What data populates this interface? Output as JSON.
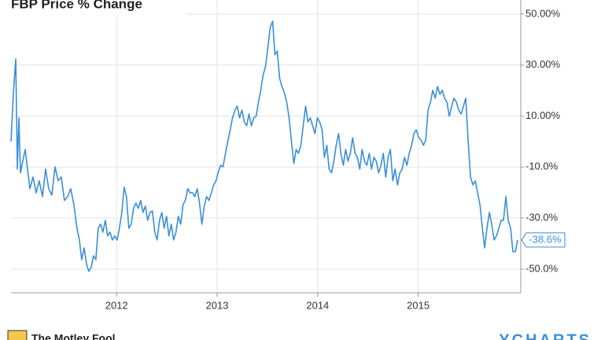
{
  "chart_data": {
    "type": "line",
    "title": "FBP Price % Change",
    "x": [
      2010.95,
      2010.973,
      2010.997,
      2011.013,
      2011.028,
      2011.044,
      2011.067,
      2011.091,
      2011.114,
      2011.138,
      2011.169,
      2011.2,
      2011.231,
      2011.263,
      2011.294,
      2011.325,
      2011.356,
      2011.388,
      2011.419,
      2011.45,
      2011.481,
      2011.513,
      2011.544,
      2011.575,
      2011.606,
      2011.63,
      2011.653,
      2011.677,
      2011.7,
      2011.723,
      2011.747,
      2011.77,
      2011.794,
      2011.817,
      2011.841,
      2011.864,
      2011.888,
      2011.911,
      2011.934,
      2011.958,
      2011.981,
      2012.005,
      2012.028,
      2012.052,
      2012.075,
      2012.098,
      2012.122,
      2012.145,
      2012.169,
      2012.192,
      2012.216,
      2012.239,
      2012.263,
      2012.286,
      2012.309,
      2012.333,
      2012.356,
      2012.38,
      2012.403,
      2012.427,
      2012.45,
      2012.473,
      2012.497,
      2012.52,
      2012.544,
      2012.567,
      2012.591,
      2012.614,
      2012.638,
      2012.661,
      2012.684,
      2012.708,
      2012.731,
      2012.755,
      2012.778,
      2012.802,
      2012.825,
      2012.848,
      2012.872,
      2012.895,
      2012.919,
      2012.942,
      2012.966,
      2012.989,
      2013.013,
      2013.036,
      2013.059,
      2013.083,
      2013.106,
      2013.13,
      2013.153,
      2013.177,
      2013.2,
      2013.223,
      2013.247,
      2013.27,
      2013.294,
      2013.317,
      2013.341,
      2013.364,
      2013.388,
      2013.411,
      2013.434,
      2013.458,
      2013.481,
      2013.505,
      2013.528,
      2013.552,
      2013.575,
      2013.598,
      2013.622,
      2013.645,
      2013.669,
      2013.692,
      2013.716,
      2013.739,
      2013.763,
      2013.786,
      2013.809,
      2013.833,
      2013.856,
      2013.88,
      2013.903,
      2013.927,
      2013.95,
      2013.973,
      2013.997,
      2014.02,
      2014.044,
      2014.067,
      2014.091,
      2014.114,
      2014.138,
      2014.161,
      2014.184,
      2014.208,
      2014.231,
      2014.255,
      2014.278,
      2014.302,
      2014.325,
      2014.348,
      2014.372,
      2014.395,
      2014.419,
      2014.442,
      2014.466,
      2014.489,
      2014.513,
      2014.536,
      2014.559,
      2014.583,
      2014.606,
      2014.63,
      2014.653,
      2014.677,
      2014.7,
      2014.723,
      2014.747,
      2014.77,
      2014.794,
      2014.817,
      2014.841,
      2014.864,
      2014.888,
      2014.911,
      2014.934,
      2014.958,
      2014.981,
      2015.005,
      2015.028,
      2015.052,
      2015.075,
      2015.098,
      2015.122,
      2015.145,
      2015.169,
      2015.192,
      2015.216,
      2015.239,
      2015.263,
      2015.286,
      2015.309,
      2015.333,
      2015.356,
      2015.38,
      2015.403,
      2015.427,
      2015.45,
      2015.473,
      2015.497,
      2015.52,
      2015.544,
      2015.567,
      2015.591,
      2015.614,
      2015.638,
      2015.661,
      2015.684,
      2015.708,
      2015.731,
      2015.755,
      2015.778,
      2015.802,
      2015.825,
      2015.848,
      2015.872,
      2015.895,
      2015.919,
      2015.942,
      2015.966,
      2015.989
    ],
    "series": [
      {
        "name": "FBP",
        "color": "#3a8fd9",
        "values": [
          0.0,
          18.5,
          32.4,
          -10.8,
          9.3,
          -12.3,
          -7.7,
          -3.1,
          -10.8,
          -18.5,
          -13.9,
          -20.1,
          -15.4,
          -21.6,
          -10.8,
          -18.5,
          -21.0,
          -9.9,
          -15.4,
          -13.9,
          -23.1,
          -21.6,
          -18.5,
          -24.7,
          -34.0,
          -38.6,
          -46.3,
          -41.7,
          -47.8,
          -50.9,
          -49.4,
          -44.8,
          -46.3,
          -34.0,
          -32.4,
          -35.5,
          -30.9,
          -37.0,
          -35.5,
          -38.6,
          -37.0,
          -38.6,
          -34.0,
          -27.8,
          -17.9,
          -21.6,
          -34.0,
          -32.4,
          -26.2,
          -24.1,
          -26.2,
          -23.1,
          -27.8,
          -25.3,
          -30.9,
          -27.8,
          -27.2,
          -35.5,
          -38.6,
          -30.9,
          -27.8,
          -34.0,
          -29.3,
          -37.0,
          -32.4,
          -38.6,
          -35.5,
          -29.3,
          -32.4,
          -24.7,
          -23.1,
          -18.5,
          -20.1,
          -20.1,
          -21.6,
          -18.5,
          -24.1,
          -32.4,
          -25.3,
          -21.6,
          -23.1,
          -20.1,
          -17.0,
          -15.4,
          -11.7,
          -9.3,
          -9.9,
          -4.6,
          0.0,
          4.6,
          9.3,
          12.3,
          13.9,
          9.3,
          12.3,
          7.7,
          6.2,
          10.8,
          6.2,
          9.3,
          9.9,
          15.4,
          20.1,
          26.2,
          29.3,
          37.0,
          44.8,
          47.2,
          34.0,
          35.5,
          24.7,
          21.6,
          19.1,
          15.4,
          9.3,
          0.0,
          -8.6,
          -3.1,
          -4.6,
          -1.5,
          6.2,
          13.9,
          7.7,
          9.3,
          6.2,
          3.1,
          9.3,
          7.7,
          4.6,
          -6.2,
          -1.5,
          -10.8,
          -12.3,
          -7.7,
          -1.5,
          3.1,
          -4.6,
          -9.3,
          -3.1,
          -7.7,
          -4.6,
          1.5,
          -4.6,
          -6.2,
          -10.8,
          -3.1,
          -7.7,
          -9.3,
          -4.6,
          -10.8,
          -6.2,
          -7.7,
          -12.3,
          -9.3,
          -4.6,
          -13.9,
          -6.2,
          -3.1,
          -15.4,
          -10.8,
          -17.0,
          -12.3,
          -10.8,
          -6.2,
          -9.3,
          -4.6,
          -1.5,
          3.1,
          4.6,
          1.5,
          0.6,
          -1.5,
          0.6,
          12.3,
          15.4,
          20.1,
          17.0,
          21.6,
          18.5,
          20.1,
          17.0,
          15.4,
          9.9,
          13.9,
          17.0,
          15.4,
          12.3,
          10.8,
          13.9,
          17.0,
          0.0,
          -13.9,
          -17.0,
          -15.4,
          -20.1,
          -24.7,
          -34.0,
          -41.7,
          -34.0,
          -27.8,
          -32.4,
          -38.6,
          -37.0,
          -34.0,
          -30.9,
          -30.9,
          -21.6,
          -30.9,
          -34.0,
          -43.2,
          -43.2,
          -38.6
        ]
      }
    ],
    "end_label": "-38.6%",
    "xlim": [
      2010.95,
      2016.02
    ],
    "xticks": [
      2012,
      2013,
      2014,
      2015
    ],
    "ylim": [
      -59.3,
      55.5
    ],
    "yticks": [
      {
        "value": 50,
        "label": "50.00%"
      },
      {
        "value": 30,
        "label": "30.00%"
      },
      {
        "value": 10,
        "label": "10.00%"
      },
      {
        "value": -10,
        "label": "-10.0%"
      },
      {
        "value": -30,
        "label": "-30.0%"
      },
      {
        "value": -50,
        "label": "-50.0%"
      }
    ],
    "grid": true
  },
  "footer": {
    "publisher": "The Motley Fool",
    "provider": "YCHARTS"
  }
}
